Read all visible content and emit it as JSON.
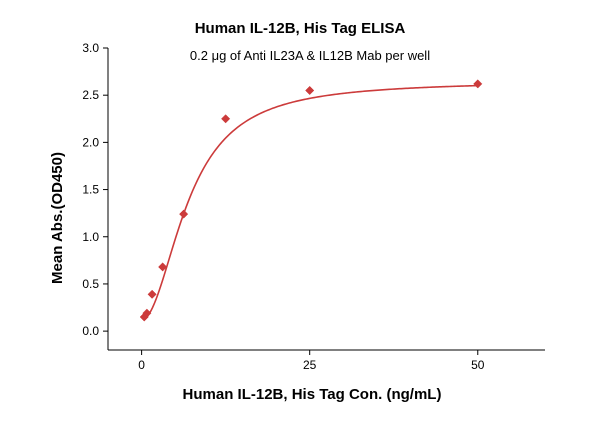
{
  "chart_data": {
    "type": "scatter",
    "title": "Human IL-12B, His Tag ELISA",
    "subtitle": "0.2 μg of Anti IL23A & IL12B Mab per well",
    "xlabel": "Human IL-12B, His Tag Con. (ng/mL)",
    "ylabel": "Mean Abs.(OD450)",
    "xlim": [
      -5,
      60
    ],
    "ylim": [
      -0.2,
      3.0
    ],
    "x_ticks": [
      0,
      25,
      50
    ],
    "x_tick_labels": [
      "0",
      "25",
      "50"
    ],
    "y_ticks": [
      0.0,
      0.5,
      1.0,
      1.5,
      2.0,
      2.5,
      3.0
    ],
    "y_tick_labels": [
      "0.0",
      "0.5",
      "1.0",
      "1.5",
      "2.0",
      "2.5",
      "3.0"
    ],
    "grid": false,
    "marker": "diamond",
    "colors": {
      "series": "#cc3b3b",
      "axis": "#000000"
    },
    "series": [
      {
        "x": [
          0.391,
          0.781,
          1.563,
          3.125,
          6.25,
          12.5,
          25,
          50
        ],
        "y": [
          0.15,
          0.19,
          0.39,
          0.68,
          1.24,
          2.25,
          2.55,
          2.62
        ]
      }
    ],
    "fit_curve": {
      "type": "4PL",
      "bottom": 0.12,
      "top": 2.65,
      "ec50": 7.0,
      "hill": 2.0
    }
  }
}
